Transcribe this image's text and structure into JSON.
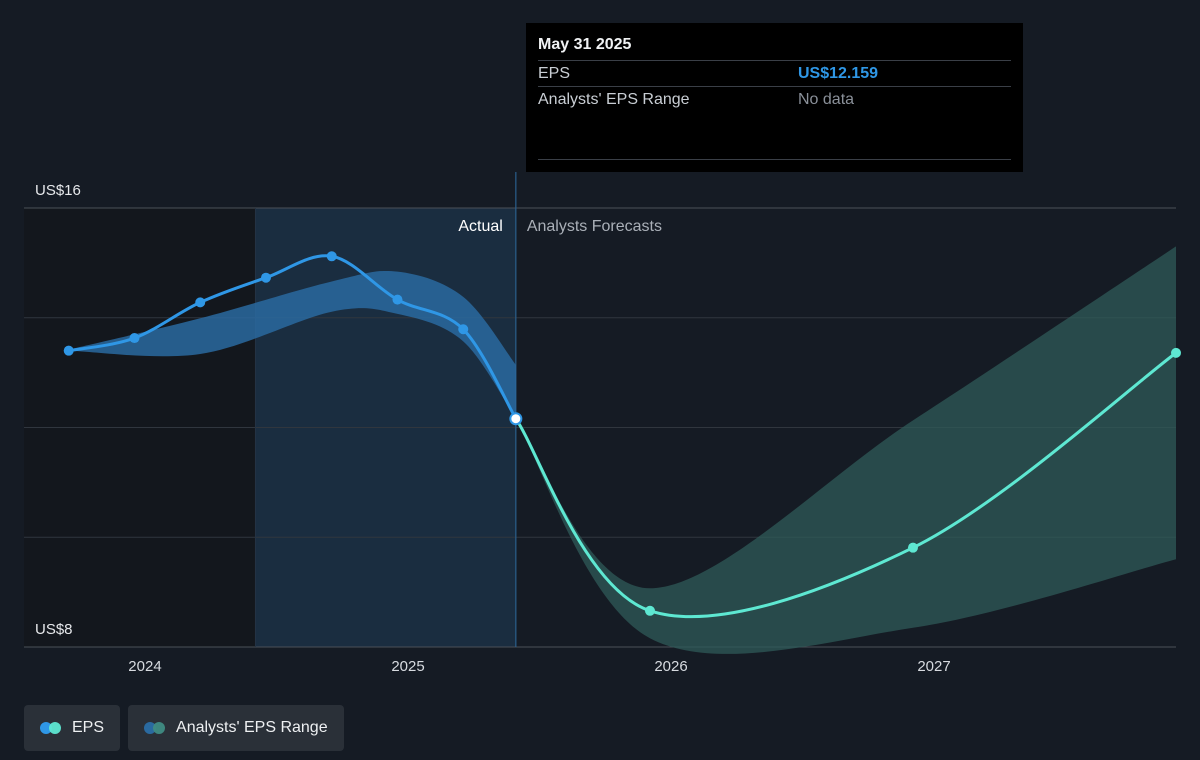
{
  "tooltip": {
    "date": "May 31 2025",
    "rows": [
      {
        "label": "EPS",
        "value": "US$12.159"
      },
      {
        "label": "Analysts' EPS Range",
        "value": "No data"
      }
    ]
  },
  "regions": {
    "actual_label": "Actual",
    "forecast_label": "Analysts Forecasts"
  },
  "legend": {
    "items": [
      {
        "label": "EPS",
        "colors": [
          "#2f97e6",
          "#5ee8d2"
        ]
      },
      {
        "label": "Analysts' EPS Range",
        "colors": [
          "#2a6aa0",
          "#3f8c83"
        ]
      }
    ]
  },
  "colors": {
    "background": "#151b24",
    "actual_line": "#2f97e6",
    "forecast_line": "#5ee8d2",
    "actual_band": "#2a6aa0",
    "forecast_band": "#2f5b58",
    "past_region": "#13171d",
    "highlight_region": "#1a2d40"
  },
  "chart_data": {
    "type": "line",
    "title": "",
    "xlabel": "",
    "ylabel": "",
    "x_ticks": [
      2024,
      2025,
      2026,
      2027
    ],
    "x_range": [
      2023.54,
      2027.92
    ],
    "y_ticks": [
      {
        "value": 16,
        "label": "US$16"
      },
      {
        "value": 8,
        "label": "US$8"
      }
    ],
    "ylim": [
      8,
      16
    ],
    "gridlines_y": [
      14,
      12,
      10
    ],
    "grid": true,
    "legend_position": "bottom-left",
    "past_region_end": 2024.42,
    "actual_end": 2025.41,
    "series": [
      {
        "name": "EPS",
        "segment": "actual",
        "points": [
          {
            "x": 2023.71,
            "y": 13.4
          },
          {
            "x": 2023.96,
            "y": 13.63
          },
          {
            "x": 2024.21,
            "y": 14.28
          },
          {
            "x": 2024.46,
            "y": 14.73
          },
          {
            "x": 2024.71,
            "y": 15.12
          },
          {
            "x": 2024.96,
            "y": 14.33
          },
          {
            "x": 2025.21,
            "y": 13.79
          },
          {
            "x": 2025.41,
            "y": 12.16
          }
        ]
      },
      {
        "name": "EPS",
        "segment": "forecast",
        "points": [
          {
            "x": 2025.41,
            "y": 12.16
          },
          {
            "x": 2025.92,
            "y": 8.66
          },
          {
            "x": 2026.92,
            "y": 9.81
          },
          {
            "x": 2027.92,
            "y": 13.36
          }
        ]
      }
    ],
    "ranges": [
      {
        "name": "Analysts' EPS Range",
        "segment": "actual",
        "upper": [
          {
            "x": 2023.71,
            "y": 13.42
          },
          {
            "x": 2024.21,
            "y": 13.99
          },
          {
            "x": 2024.71,
            "y": 14.66
          },
          {
            "x": 2024.96,
            "y": 14.84
          },
          {
            "x": 2025.21,
            "y": 14.38
          },
          {
            "x": 2025.41,
            "y": 13.14
          }
        ],
        "lower": [
          {
            "x": 2025.41,
            "y": 12.16
          },
          {
            "x": 2025.21,
            "y": 13.57
          },
          {
            "x": 2024.96,
            "y": 14.07
          },
          {
            "x": 2024.71,
            "y": 14.11
          },
          {
            "x": 2024.21,
            "y": 13.34
          },
          {
            "x": 2023.71,
            "y": 13.4
          }
        ]
      },
      {
        "name": "Analysts' EPS Range",
        "segment": "forecast",
        "upper": [
          {
            "x": 2025.41,
            "y": 12.16
          },
          {
            "x": 2025.92,
            "y": 9.07
          },
          {
            "x": 2026.92,
            "y": 12.13
          },
          {
            "x": 2027.92,
            "y": 15.3
          }
        ],
        "lower": [
          {
            "x": 2027.92,
            "y": 9.6
          },
          {
            "x": 2026.92,
            "y": 8.35
          },
          {
            "x": 2025.92,
            "y": 8.16
          },
          {
            "x": 2025.41,
            "y": 12.16
          }
        ]
      }
    ]
  }
}
